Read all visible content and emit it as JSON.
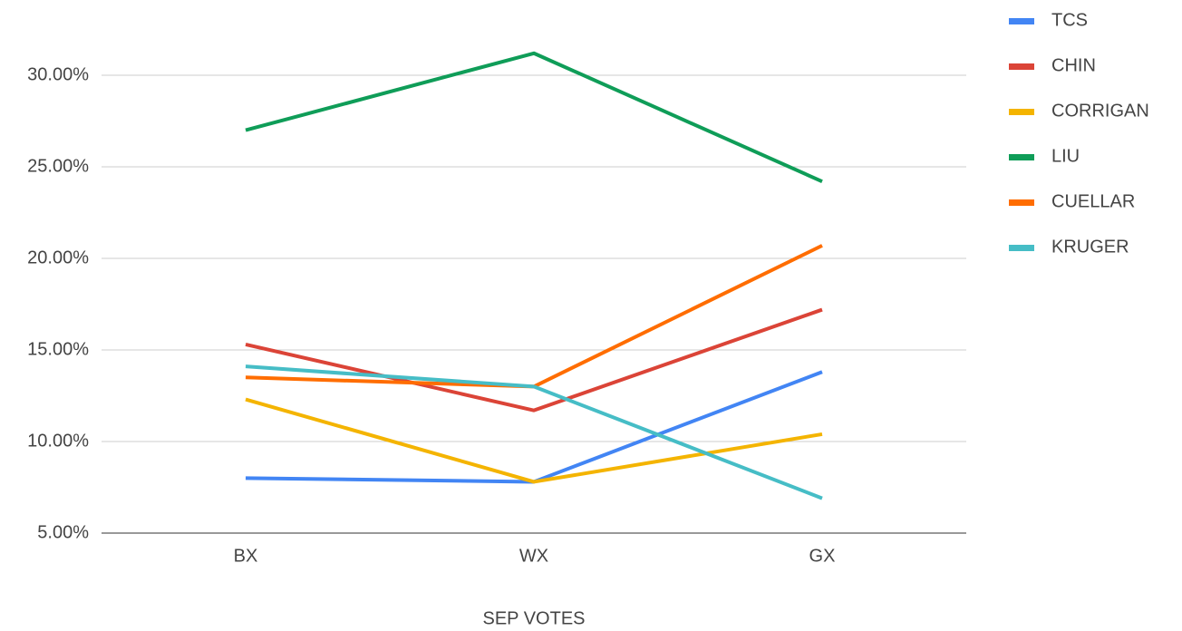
{
  "chart_data": {
    "type": "line",
    "x_label": "SEP VOTES",
    "categories": [
      "BX",
      "WX",
      "GX"
    ],
    "series": [
      {
        "name": "TCS",
        "color": "#4285f4",
        "values": [
          8.0,
          7.8,
          13.8
        ]
      },
      {
        "name": "CHIN",
        "color": "#db4437",
        "values": [
          15.3,
          11.7,
          17.2
        ]
      },
      {
        "name": "CORRIGAN",
        "color": "#f4b400",
        "values": [
          12.3,
          7.8,
          10.4
        ]
      },
      {
        "name": "LIU",
        "color": "#0f9d58",
        "values": [
          27.0,
          31.2,
          24.2
        ]
      },
      {
        "name": "CUELLAR",
        "color": "#ff6d00",
        "values": [
          13.5,
          13.0,
          20.7
        ]
      },
      {
        "name": "KRUGER",
        "color": "#46bdc6",
        "values": [
          14.1,
          13.0,
          6.9
        ]
      }
    ],
    "ylim": [
      5,
      32
    ],
    "yticks": [
      {
        "value": 5,
        "label": "5.00%"
      },
      {
        "value": 10,
        "label": "10.00%"
      },
      {
        "value": 15,
        "label": "15.00%"
      },
      {
        "value": 20,
        "label": "20.00%"
      },
      {
        "value": 25,
        "label": "25.00%"
      },
      {
        "value": 30,
        "label": "30.00%"
      }
    ],
    "grid": true,
    "legend": "right"
  }
}
